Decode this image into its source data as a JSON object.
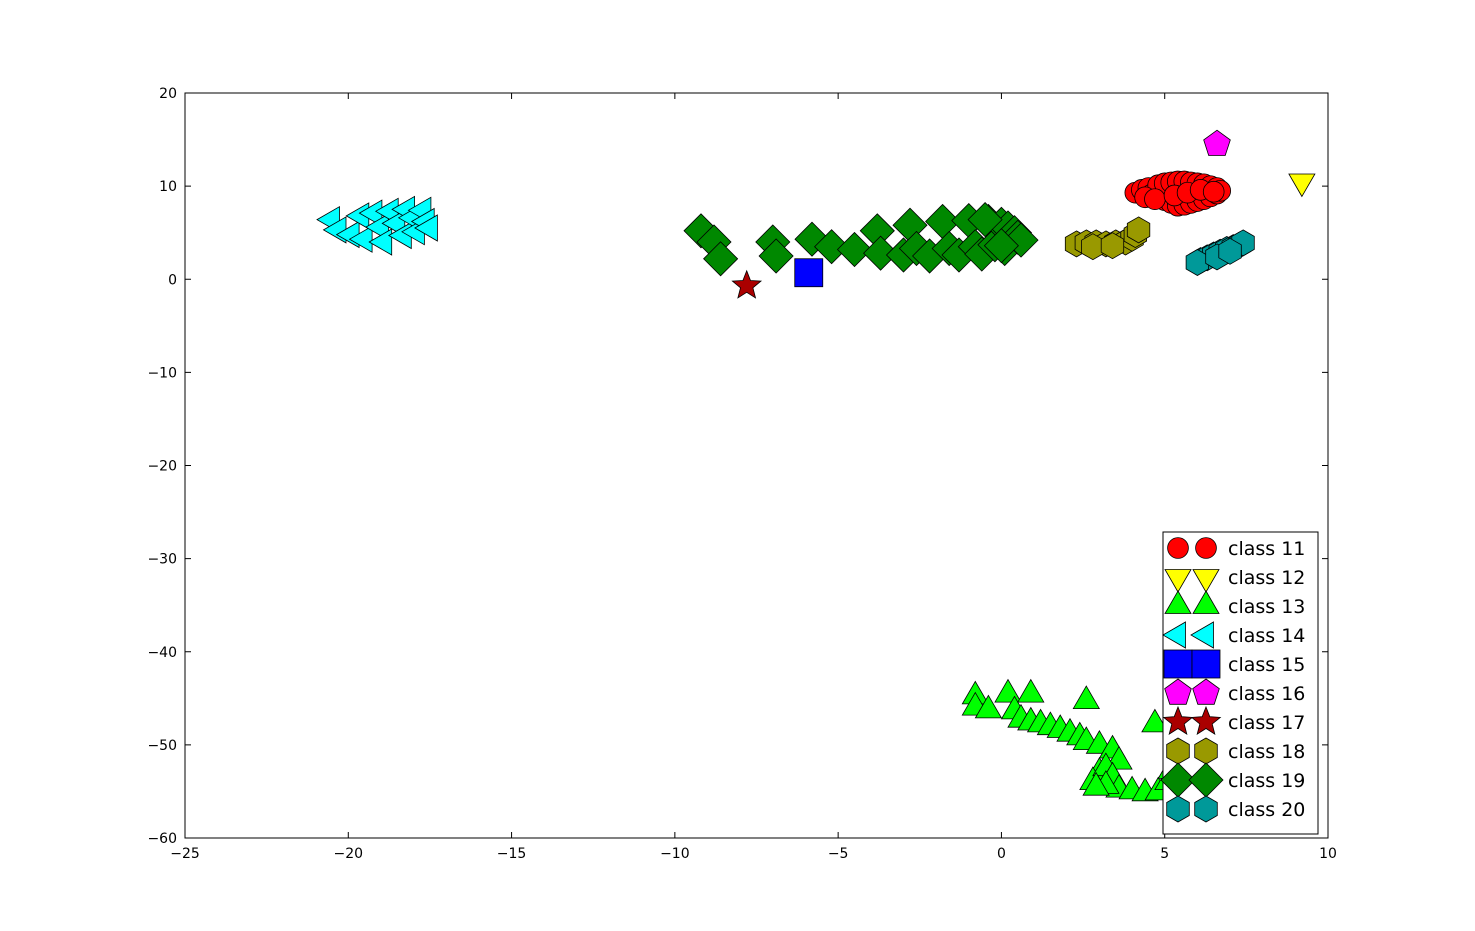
{
  "chart_data": {
    "type": "scatter",
    "title": "",
    "xlabel": "",
    "ylabel": "",
    "xlim": [
      -25,
      10
    ],
    "ylim": [
      -60,
      20
    ],
    "xticks": [
      -25,
      -20,
      -15,
      -10,
      -5,
      0,
      5,
      10
    ],
    "yticks": [
      -60,
      -50,
      -40,
      -30,
      -20,
      -10,
      0,
      10,
      20
    ],
    "xtick_labels": [
      "−25",
      "−20",
      "−15",
      "−10",
      "−5",
      "0",
      "5",
      "10"
    ],
    "ytick_labels": [
      "−60",
      "−50",
      "−40",
      "−30",
      "−20",
      "−10",
      "0",
      "10",
      "20"
    ],
    "grid": false,
    "legend_position": "lower-right",
    "series": [
      {
        "name": "class 11",
        "color": "#ff0000",
        "marker": "circle",
        "points": [
          [
            4.1,
            9.3
          ],
          [
            4.3,
            9.6
          ],
          [
            4.5,
            9.8
          ],
          [
            4.6,
            9.1
          ],
          [
            4.8,
            10.1
          ],
          [
            5.0,
            8.5
          ],
          [
            5.0,
            10.3
          ],
          [
            5.2,
            8.2
          ],
          [
            5.2,
            10.4
          ],
          [
            5.4,
            7.9
          ],
          [
            5.4,
            10.5
          ],
          [
            5.6,
            8.0
          ],
          [
            5.6,
            10.5
          ],
          [
            5.8,
            8.2
          ],
          [
            5.8,
            10.4
          ],
          [
            6.0,
            8.4
          ],
          [
            6.0,
            10.3
          ],
          [
            6.2,
            8.6
          ],
          [
            6.2,
            10.2
          ],
          [
            6.4,
            8.9
          ],
          [
            6.4,
            10.0
          ],
          [
            6.6,
            9.2
          ],
          [
            6.6,
            9.8
          ],
          [
            6.7,
            9.5
          ],
          [
            4.4,
            8.8
          ],
          [
            4.7,
            8.6
          ],
          [
            5.3,
            9.0
          ],
          [
            5.7,
            9.3
          ],
          [
            6.1,
            9.6
          ],
          [
            6.5,
            9.4
          ]
        ]
      },
      {
        "name": "class 12",
        "color": "#ffff00",
        "marker": "triangle_down",
        "points": [
          [
            9.2,
            10.5
          ]
        ]
      },
      {
        "name": "class 13",
        "color": "#00ff00",
        "marker": "triangle_up",
        "points": [
          [
            -0.8,
            -44.8
          ],
          [
            -0.8,
            -46.0
          ],
          [
            -0.4,
            -46.3
          ],
          [
            0.2,
            -44.6
          ],
          [
            0.4,
            -46.4
          ],
          [
            0.9,
            -44.6
          ],
          [
            0.6,
            -47.3
          ],
          [
            0.9,
            -47.6
          ],
          [
            1.2,
            -47.8
          ],
          [
            1.5,
            -48.1
          ],
          [
            1.8,
            -48.4
          ],
          [
            2.1,
            -48.8
          ],
          [
            2.4,
            -49.2
          ],
          [
            2.6,
            -45.3
          ],
          [
            2.6,
            -49.7
          ],
          [
            3.0,
            -50.1
          ],
          [
            3.4,
            -50.6
          ],
          [
            3.6,
            -51.8
          ],
          [
            3.0,
            -53.0
          ],
          [
            2.8,
            -54.0
          ],
          [
            3.2,
            -52.5
          ],
          [
            3.4,
            -53.5
          ],
          [
            3.6,
            -54.8
          ],
          [
            4.0,
            -55.0
          ],
          [
            4.4,
            -55.2
          ],
          [
            4.8,
            -55.1
          ],
          [
            5.1,
            -54.0
          ],
          [
            5.2,
            -52.8
          ],
          [
            4.7,
            -47.8
          ],
          [
            3.2,
            -54.4
          ],
          [
            2.9,
            -54.6
          ]
        ]
      },
      {
        "name": "class 14",
        "color": "#00ffff",
        "marker": "triangle_left",
        "points": [
          [
            -20.5,
            6.4
          ],
          [
            -20.3,
            5.3
          ],
          [
            -19.9,
            4.8
          ],
          [
            -19.6,
            6.8
          ],
          [
            -19.5,
            4.3
          ],
          [
            -19.2,
            7.1
          ],
          [
            -19.0,
            5.6
          ],
          [
            -18.9,
            4.0
          ],
          [
            -18.7,
            7.3
          ],
          [
            -18.5,
            6.0
          ],
          [
            -18.3,
            4.7
          ],
          [
            -18.2,
            7.5
          ],
          [
            -18.0,
            6.6
          ],
          [
            -17.9,
            5.1
          ],
          [
            -17.7,
            7.4
          ],
          [
            -17.6,
            6.2
          ],
          [
            -17.5,
            5.5
          ]
        ]
      },
      {
        "name": "class 15",
        "color": "#0000ff",
        "marker": "square",
        "points": [
          [
            -5.9,
            0.7
          ]
        ]
      },
      {
        "name": "class 16",
        "color": "#ff00ff",
        "marker": "pentagon",
        "points": [
          [
            6.6,
            14.5
          ]
        ]
      },
      {
        "name": "class 17",
        "color": "#aa0000",
        "marker": "star",
        "points": [
          [
            -7.8,
            -0.7
          ]
        ]
      },
      {
        "name": "class 18",
        "color": "#999900",
        "marker": "hexagon",
        "points": [
          [
            2.3,
            3.8
          ],
          [
            2.6,
            3.9
          ],
          [
            2.9,
            3.9
          ],
          [
            3.2,
            3.8
          ],
          [
            3.5,
            3.9
          ],
          [
            3.8,
            4.0
          ],
          [
            4.0,
            4.4
          ],
          [
            4.1,
            4.8
          ],
          [
            4.2,
            5.3
          ],
          [
            2.8,
            3.5
          ],
          [
            3.4,
            3.6
          ]
        ]
      },
      {
        "name": "class 19",
        "color": "#008800",
        "marker": "diamond",
        "points": [
          [
            -9.2,
            5.2
          ],
          [
            -8.8,
            4.0
          ],
          [
            -8.6,
            2.2
          ],
          [
            -7.0,
            4.0
          ],
          [
            -6.9,
            2.5
          ],
          [
            -5.8,
            4.3
          ],
          [
            -5.2,
            3.5
          ],
          [
            -4.5,
            3.2
          ],
          [
            -3.8,
            5.2
          ],
          [
            -3.7,
            2.8
          ],
          [
            -2.8,
            5.8
          ],
          [
            -3.0,
            2.6
          ],
          [
            -2.6,
            3.3
          ],
          [
            -2.2,
            2.5
          ],
          [
            -1.8,
            6.2
          ],
          [
            -1.6,
            3.3
          ],
          [
            -1.3,
            2.6
          ],
          [
            -1.0,
            6.3
          ],
          [
            -0.8,
            3.5
          ],
          [
            -0.6,
            2.7
          ],
          [
            -0.4,
            6.2
          ],
          [
            -0.2,
            3.7
          ],
          [
            0.0,
            5.9
          ],
          [
            0.1,
            3.3
          ],
          [
            0.2,
            5.5
          ],
          [
            0.4,
            5.0
          ],
          [
            0.5,
            4.5
          ],
          [
            0.6,
            4.2
          ],
          [
            0.0,
            3.6
          ],
          [
            -0.5,
            6.4
          ]
        ]
      },
      {
        "name": "class 20",
        "color": "#009999",
        "marker": "hexagon",
        "points": [
          [
            6.1,
            2.0
          ],
          [
            6.3,
            2.3
          ],
          [
            6.5,
            2.6
          ],
          [
            6.7,
            2.9
          ],
          [
            6.9,
            3.2
          ],
          [
            7.1,
            3.4
          ],
          [
            7.3,
            3.7
          ],
          [
            7.4,
            3.9
          ],
          [
            6.0,
            1.8
          ],
          [
            6.6,
            2.4
          ],
          [
            7.0,
            3.0
          ]
        ]
      }
    ]
  }
}
